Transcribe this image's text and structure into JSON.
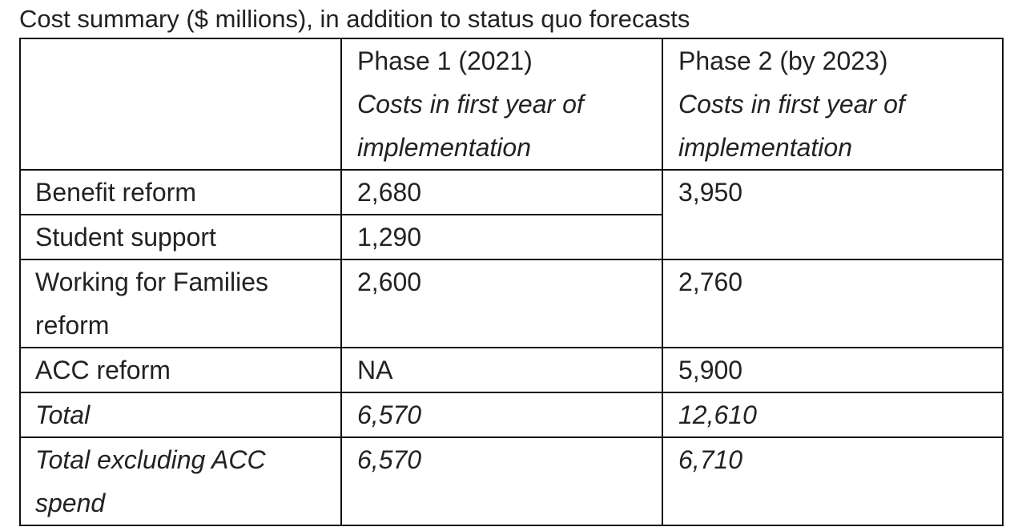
{
  "title": "Cost summary ($ millions), in addition to status quo forecasts",
  "headers": [
    {
      "label": "",
      "sub": ""
    },
    {
      "label": "Phase 1 (2021)",
      "sub": "Costs in first year of implementation"
    },
    {
      "label": "Phase 2 (by 2023)",
      "sub": "Costs in first year of implementation"
    }
  ],
  "rows": [
    {
      "label": "Benefit reform",
      "phase1": "2,680",
      "phase2": "3,950"
    },
    {
      "label": "Student support",
      "phase1": "1,290"
    },
    {
      "label": "Working for Families reform",
      "phase1": "2,600",
      "phase2": "2,760"
    },
    {
      "label": "ACC reform",
      "phase1": "NA",
      "phase2": "5,900"
    },
    {
      "label": "Total",
      "phase1": "6,570",
      "phase2": "12,610"
    },
    {
      "label": "Total excluding ACC spend",
      "phase1": "6,570",
      "phase2": "6,710"
    }
  ]
}
